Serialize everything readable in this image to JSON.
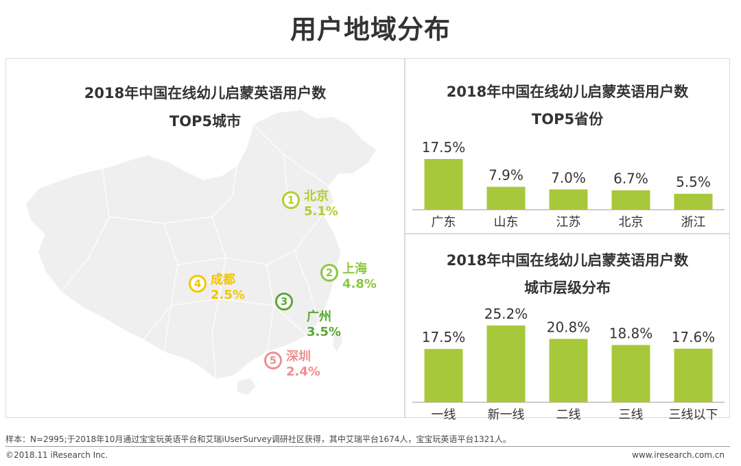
{
  "page_title": "用户地域分布",
  "map_panel": {
    "title_line1": "2018年中国在线幼儿启蒙英语用户数",
    "title_line2": "TOP5城市",
    "cities": [
      {
        "rank": "1",
        "name": "北京",
        "value": "5.1%",
        "color": "#b5cc2e"
      },
      {
        "rank": "2",
        "name": "上海",
        "value": "4.8%",
        "color": "#8dc63f"
      },
      {
        "rank": "3",
        "name": "广州",
        "value": "3.5%",
        "color": "#5aa832"
      },
      {
        "rank": "4",
        "name": "成都",
        "value": "2.5%",
        "color": "#f2c500"
      },
      {
        "rank": "5",
        "name": "深圳",
        "value": "2.4%",
        "color": "#ef8e8e"
      }
    ]
  },
  "chart_data": [
    {
      "type": "bar",
      "title": "2018年中国在线幼儿启蒙英语用户数 TOP5省份",
      "title_line1": "2018年中国在线幼儿启蒙英语用户数",
      "title_line2": "TOP5省份",
      "categories": [
        "广东",
        "山东",
        "江苏",
        "北京",
        "浙江"
      ],
      "values": [
        17.5,
        7.9,
        7.0,
        6.7,
        5.5
      ],
      "labels": [
        "17.5%",
        "7.9%",
        "7.0%",
        "6.7%",
        "5.5%"
      ],
      "ylim": [
        0,
        17.5
      ],
      "color": "#a6c83a",
      "grid": false
    },
    {
      "type": "bar",
      "title": "2018年中国在线幼儿启蒙英语用户数 城市层级分布",
      "title_line1": "2018年中国在线幼儿启蒙英语用户数",
      "title_line2": "城市层级分布",
      "categories": [
        "一线",
        "新一线",
        "二线",
        "三线",
        "三线以下"
      ],
      "values": [
        17.5,
        25.2,
        20.8,
        18.8,
        17.6
      ],
      "labels": [
        "17.5%",
        "25.2%",
        "20.8%",
        "18.8%",
        "17.6%"
      ],
      "ylim": [
        0,
        25.2
      ],
      "color": "#a6c83a",
      "grid": false
    }
  ],
  "footer": {
    "note": "样本：N=2995;于2018年10月通过宝宝玩英语平台和艾瑞iUserSurvey调研社区获得，其中艾瑞平台1674人，宝宝玩英语平台1321人。",
    "copyright": "©2018.11 iResearch Inc.",
    "website": "www.iresearch.com.cn"
  }
}
